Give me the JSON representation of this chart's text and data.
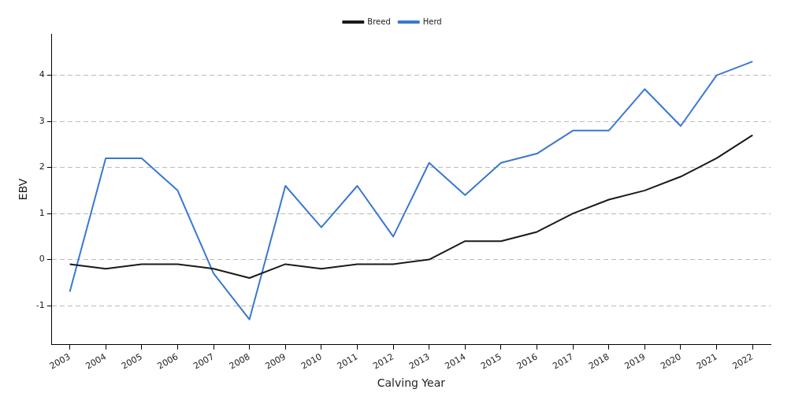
{
  "chart_data": {
    "type": "line",
    "xlabel": "Calving Year",
    "ylabel": "EBV",
    "categories": [
      "2003",
      "2004",
      "2005",
      "2006",
      "2007",
      "2008",
      "2009",
      "2010",
      "2011",
      "2012",
      "2013",
      "2014",
      "2015",
      "2016",
      "2017",
      "2018",
      "2019",
      "2020",
      "2021",
      "2022"
    ],
    "series": [
      {
        "name": "Breed",
        "color": "#1a1a1a",
        "values": [
          -0.1,
          -0.2,
          -0.1,
          -0.1,
          -0.2,
          -0.4,
          -0.1,
          -0.2,
          -0.1,
          -0.1,
          0.0,
          0.4,
          0.4,
          0.6,
          1.0,
          1.3,
          1.5,
          1.8,
          2.2,
          2.7
        ]
      },
      {
        "name": "Herd",
        "color": "#3a78d0",
        "values": [
          -0.7,
          2.2,
          2.2,
          1.5,
          -0.3,
          -1.3,
          1.6,
          0.7,
          1.6,
          0.5,
          2.1,
          1.4,
          2.1,
          2.3,
          2.8,
          2.8,
          3.7,
          2.9,
          4.0,
          4.3
        ]
      }
    ],
    "ylim": [
      -1.85,
      4.9
    ],
    "yticks": [
      -1,
      0,
      1,
      2,
      3,
      4
    ],
    "grid": "y",
    "line_style": "solid",
    "marker": "none",
    "legend": "top"
  }
}
